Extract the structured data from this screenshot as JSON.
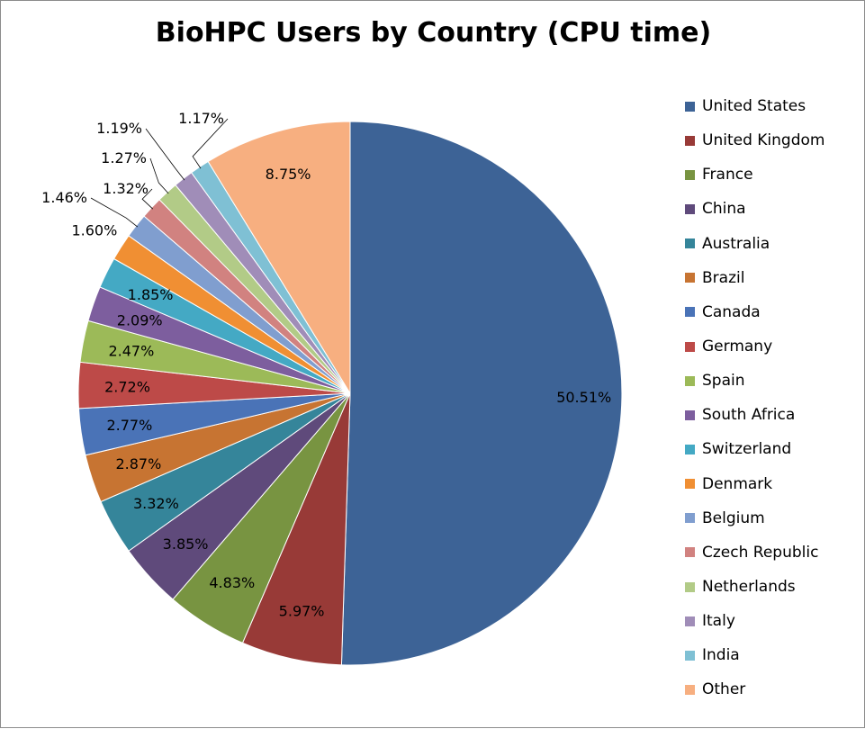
{
  "chart_data": {
    "type": "pie",
    "title": "BioHPC Users by Country (CPU time)",
    "legend_position": "right",
    "slices": [
      {
        "label": "United States",
        "value": 50.51,
        "display": "50.51%",
        "color": "#3D6396"
      },
      {
        "label": "United Kingdom",
        "value": 5.97,
        "display": "5.97%",
        "color": "#983A37"
      },
      {
        "label": "France",
        "value": 4.83,
        "display": "4.83%",
        "color": "#789441"
      },
      {
        "label": "China",
        "value": 3.85,
        "display": "3.85%",
        "color": "#5F4A7B"
      },
      {
        "label": "Australia",
        "value": 3.32,
        "display": "3.32%",
        "color": "#35859A"
      },
      {
        "label": "Brazil",
        "value": 2.87,
        "display": "2.87%",
        "color": "#C77432"
      },
      {
        "label": "Canada",
        "value": 2.77,
        "display": "2.77%",
        "color": "#4A73B7"
      },
      {
        "label": "Germany",
        "value": 2.72,
        "display": "2.72%",
        "color": "#BD4A48"
      },
      {
        "label": "Spain",
        "value": 2.47,
        "display": "2.47%",
        "color": "#9CBA58"
      },
      {
        "label": "South Africa",
        "value": 2.09,
        "display": "2.09%",
        "color": "#7D5E9E"
      },
      {
        "label": "Switzerland",
        "value": 1.85,
        "display": "1.85%",
        "color": "#44A9C4"
      },
      {
        "label": "Denmark",
        "value": 1.6,
        "display": "1.60%",
        "color": "#F08F33"
      },
      {
        "label": "Belgium",
        "value": 1.46,
        "display": "1.46%",
        "color": "#809ECF"
      },
      {
        "label": "Czech Republic",
        "value": 1.32,
        "display": "1.32%",
        "color": "#D18280"
      },
      {
        "label": "Netherlands",
        "value": 1.27,
        "display": "1.27%",
        "color": "#B2CB87"
      },
      {
        "label": "Italy",
        "value": 1.19,
        "display": "1.19%",
        "color": "#A08DB8"
      },
      {
        "label": "India",
        "value": 1.17,
        "display": "1.17%",
        "color": "#7FC0D4"
      },
      {
        "label": "Other",
        "value": 8.75,
        "display": "8.75%",
        "color": "#F7AF80"
      }
    ]
  }
}
